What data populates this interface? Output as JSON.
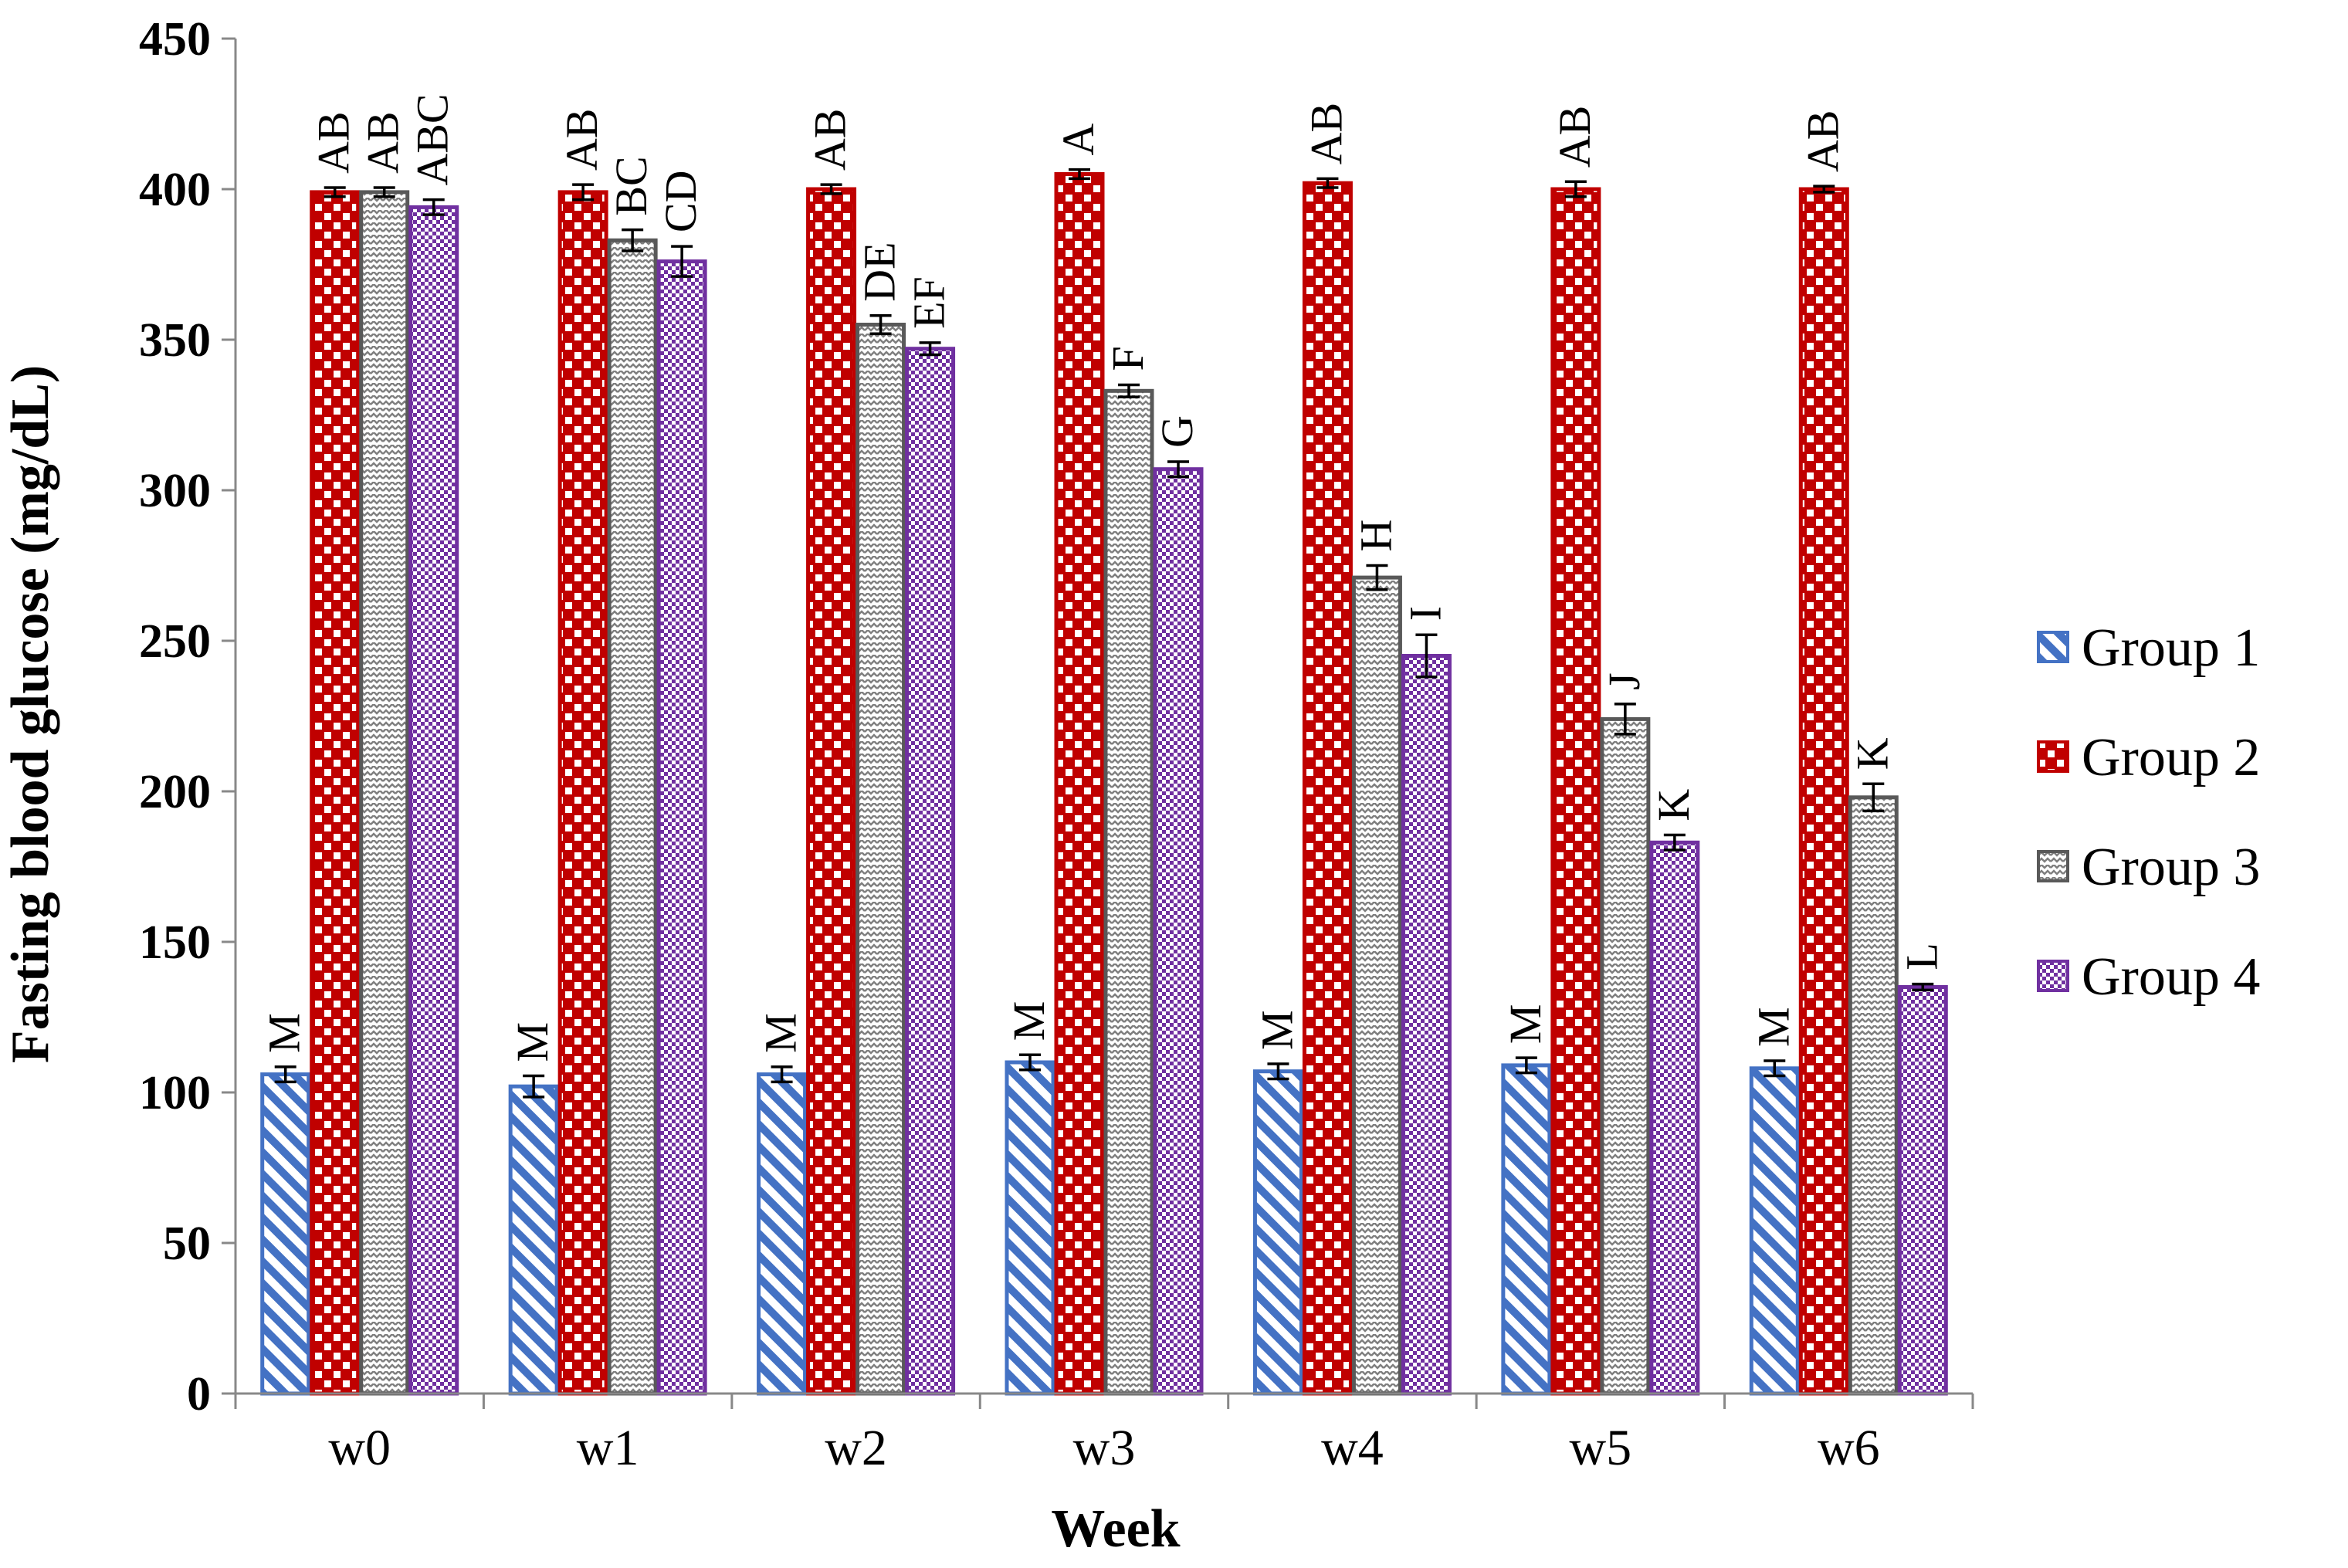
{
  "chart_data": {
    "type": "bar",
    "title": "",
    "xlabel": "Week",
    "ylabel": "Fasting blood glucose (mg/dL)",
    "ylim": [
      0,
      450
    ],
    "yticks": [
      "0",
      "50",
      "100",
      "150",
      "200",
      "250",
      "300",
      "350",
      "400",
      "450"
    ],
    "categories": [
      "w0",
      "w1",
      "w2",
      "w3",
      "w4",
      "w5",
      "w6"
    ],
    "legend_position": "right",
    "series": [
      {
        "name": "Group 1",
        "color": "#4472C4",
        "pattern": "diagonal-stripes",
        "values": [
          106,
          102,
          106,
          110,
          107,
          109,
          108
        ],
        "errors": [
          2.5,
          3.5,
          2.5,
          2.5,
          2.5,
          2.5,
          2.5
        ],
        "labels": [
          "M",
          "M",
          "M",
          "M",
          "M",
          "M",
          "M"
        ]
      },
      {
        "name": "Group 2",
        "color": "#C00000",
        "pattern": "large-checker",
        "values": [
          399,
          399,
          400,
          405,
          402,
          400,
          400
        ],
        "errors": [
          1.5,
          2.5,
          1.5,
          1.5,
          1.5,
          2.5,
          1.0
        ],
        "labels": [
          "AB",
          "AB",
          "AB",
          "A",
          "AB",
          "AB",
          "AB"
        ]
      },
      {
        "name": "Group 3",
        "color": "#595959",
        "pattern": "zigzag",
        "values": [
          399,
          383,
          355,
          333,
          271,
          224,
          198
        ],
        "errors": [
          1.5,
          3.5,
          3.0,
          2.0,
          4.0,
          5.0,
          4.5
        ],
        "labels": [
          "AB",
          "BC",
          "DE",
          "F",
          "H",
          "J",
          "K"
        ]
      },
      {
        "name": "Group 4",
        "color": "#7030A0",
        "pattern": "small-checker",
        "values": [
          394,
          376,
          347,
          307,
          245,
          183,
          135
        ],
        "errors": [
          2.5,
          5.0,
          2.0,
          2.5,
          7.0,
          2.5,
          1.0
        ],
        "labels": [
          "ABC",
          "CD",
          "EF",
          "G",
          "I",
          "K",
          "L"
        ]
      }
    ]
  }
}
